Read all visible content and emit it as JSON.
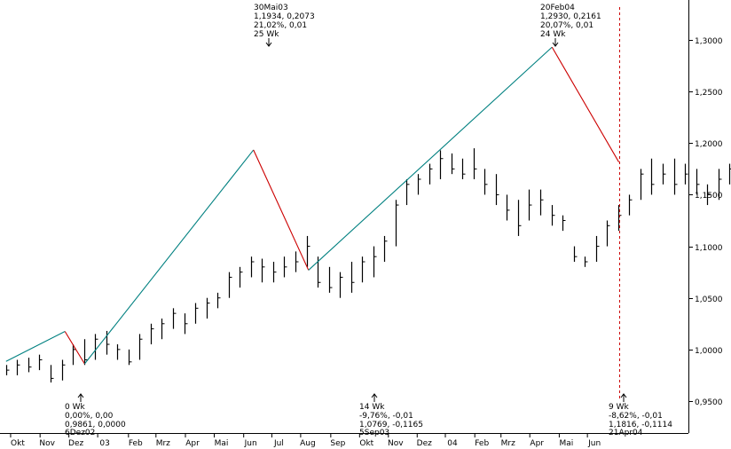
{
  "chart_data": {
    "type": "ohlc",
    "title": "",
    "xlabel": "",
    "ylabel": "",
    "ylim": [
      0.93,
      1.34
    ],
    "y_ticks": [
      "1,3000",
      "1,2500",
      "1,2000",
      "1,1500",
      "1,1000",
      "1,0500",
      "1,0000",
      "0,9500"
    ],
    "y_tick_values": [
      1.3,
      1.25,
      1.2,
      1.15,
      1.1,
      1.05,
      1.0,
      0.95
    ],
    "x_ticks": [
      "Okt",
      "Nov",
      "Dez",
      "03",
      "Feb",
      "Mrz",
      "Apr",
      "Mai",
      "Jun",
      "Jul",
      "Aug",
      "Sep",
      "Okt",
      "Nov",
      "Dez",
      "04",
      "Feb",
      "Mrz",
      "Apr",
      "Mai",
      "Jun"
    ],
    "x_tick_weeks": [
      0.7,
      5.2,
      9.6,
      14.0,
      18.7,
      22.9,
      27.4,
      31.8,
      36.3,
      40.6,
      45.0,
      49.6,
      54.0,
      58.4,
      62.8,
      67.1,
      71.6,
      75.6,
      80.0,
      84.5,
      88.8
    ],
    "grid": false,
    "legend": "none",
    "bars": [
      [
        0.985,
        0.975,
        0.98
      ],
      [
        0.99,
        0.975,
        0.985
      ],
      [
        0.992,
        0.978,
        0.983
      ],
      [
        0.995,
        0.98,
        0.99
      ],
      [
        0.985,
        0.968,
        0.972
      ],
      [
        0.99,
        0.97,
        0.985
      ],
      [
        1.005,
        0.985,
        1.0
      ],
      [
        1.01,
        0.985,
        0.99
      ],
      [
        1.015,
        0.99,
        1.01
      ],
      [
        1.018,
        0.995,
        1.005
      ],
      [
        1.005,
        0.99,
        1.0
      ],
      [
        1.0,
        0.985,
        0.988
      ],
      [
        1.015,
        0.99,
        1.01
      ],
      [
        1.025,
        1.005,
        1.02
      ],
      [
        1.03,
        1.01,
        1.025
      ],
      [
        1.04,
        1.02,
        1.035
      ],
      [
        1.035,
        1.015,
        1.025
      ],
      [
        1.045,
        1.025,
        1.04
      ],
      [
        1.05,
        1.03,
        1.045
      ],
      [
        1.055,
        1.04,
        1.05
      ],
      [
        1.075,
        1.05,
        1.07
      ],
      [
        1.08,
        1.06,
        1.075
      ],
      [
        1.09,
        1.07,
        1.085
      ],
      [
        1.088,
        1.065,
        1.08
      ],
      [
        1.085,
        1.065,
        1.075
      ],
      [
        1.09,
        1.07,
        1.08
      ],
      [
        1.095,
        1.075,
        1.085
      ],
      [
        1.11,
        1.08,
        1.1
      ],
      [
        1.09,
        1.06,
        1.065
      ],
      [
        1.08,
        1.055,
        1.06
      ],
      [
        1.075,
        1.05,
        1.07
      ],
      [
        1.085,
        1.055,
        1.065
      ],
      [
        1.09,
        1.065,
        1.085
      ],
      [
        1.1,
        1.07,
        1.09
      ],
      [
        1.11,
        1.085,
        1.105
      ],
      [
        1.145,
        1.1,
        1.14
      ],
      [
        1.165,
        1.14,
        1.16
      ],
      [
        1.17,
        1.15,
        1.165
      ],
      [
        1.18,
        1.16,
        1.175
      ],
      [
        1.193,
        1.165,
        1.185
      ],
      [
        1.19,
        1.17,
        1.175
      ],
      [
        1.185,
        1.165,
        1.17
      ],
      [
        1.195,
        1.165,
        1.175
      ],
      [
        1.175,
        1.15,
        1.16
      ],
      [
        1.17,
        1.14,
        1.15
      ],
      [
        1.15,
        1.125,
        1.135
      ],
      [
        1.145,
        1.11,
        1.12
      ],
      [
        1.155,
        1.125,
        1.14
      ],
      [
        1.155,
        1.13,
        1.145
      ],
      [
        1.14,
        1.12,
        1.13
      ],
      [
        1.13,
        1.115,
        1.125
      ],
      [
        1.1,
        1.085,
        1.09
      ],
      [
        1.09,
        1.08,
        1.085
      ],
      [
        1.11,
        1.085,
        1.1
      ],
      [
        1.125,
        1.1,
        1.12
      ],
      [
        1.14,
        1.115,
        1.13
      ],
      [
        1.15,
        1.13,
        1.145
      ],
      [
        1.175,
        1.145,
        1.17
      ],
      [
        1.185,
        1.15,
        1.16
      ],
      [
        1.18,
        1.16,
        1.17
      ],
      [
        1.185,
        1.15,
        1.16
      ],
      [
        1.18,
        1.16,
        1.17
      ],
      [
        1.175,
        1.15,
        1.16
      ],
      [
        1.16,
        1.14,
        1.15
      ],
      [
        1.175,
        1.145,
        1.165
      ],
      [
        1.18,
        1.16,
        1.175
      ],
      [
        1.19,
        1.17,
        1.185
      ],
      [
        1.2,
        1.18,
        1.195
      ],
      [
        1.21,
        1.19,
        1.205
      ],
      [
        1.22,
        1.2,
        1.215
      ],
      [
        1.23,
        1.21,
        1.225
      ],
      [
        1.24,
        1.225,
        1.235
      ],
      [
        1.245,
        1.225,
        1.24
      ],
      [
        1.26,
        1.23,
        1.25
      ],
      [
        1.28,
        1.24,
        1.27
      ],
      [
        1.29,
        1.26,
        1.28
      ],
      [
        1.27,
        1.24,
        1.25
      ],
      [
        1.28,
        1.24,
        1.26
      ],
      [
        1.275,
        1.25,
        1.27
      ],
      [
        1.285,
        1.25,
        1.27
      ],
      [
        1.293,
        1.26,
        1.27
      ],
      [
        1.27,
        1.24,
        1.25
      ],
      [
        1.265,
        1.235,
        1.245
      ],
      [
        1.25,
        1.205,
        1.225
      ],
      [
        1.235,
        1.215,
        1.225
      ],
      [
        1.245,
        1.215,
        1.235
      ],
      [
        1.24,
        1.21,
        1.22
      ],
      [
        1.225,
        1.205,
        1.212
      ],
      [
        1.22,
        1.2,
        1.21
      ],
      [
        1.21,
        1.195,
        1.205
      ]
    ],
    "zigzag": [
      {
        "week": 0,
        "value": 0.9885,
        "color": "#008080"
      },
      {
        "week": 15,
        "value": 1.0175,
        "color": "#cc0000"
      },
      {
        "week": 20,
        "value": 0.9861,
        "color": "#008080"
      },
      {
        "week": 63,
        "value": 1.1934,
        "color": "#cc0000"
      },
      {
        "week": 77,
        "value": 1.0769,
        "color": "#008080"
      },
      {
        "week": 139,
        "value": 1.293,
        "color": "#cc0000"
      },
      {
        "week": 156,
        "value": 1.1816,
        "color": "#cc0000"
      }
    ],
    "vline_week": 156,
    "colors": {
      "bars": "#000000",
      "up": "#008080",
      "down": "#cc0000",
      "vline": "#cc0000"
    },
    "annotations": {
      "peak1": [
        "30Mai03",
        "1,1934, 0,2073",
        "21,02%, 0,01",
        "25 Wk"
      ],
      "peak2": [
        "20Feb04",
        "1,2930, 0,2161",
        "20,07%, 0,01",
        "24 Wk"
      ],
      "trough1": [
        "0 Wk",
        "0,00%, 0,00",
        "0,9861, 0,0000",
        "6Dez02"
      ],
      "trough2": [
        "14 Wk",
        "-9,76%, -0,01",
        "1,0769, -0,1165",
        "5Sep03"
      ],
      "last": [
        "9 Wk",
        "-8,62%, -0,01",
        "1,1816, -0,1114",
        "21Apr04"
      ]
    }
  }
}
